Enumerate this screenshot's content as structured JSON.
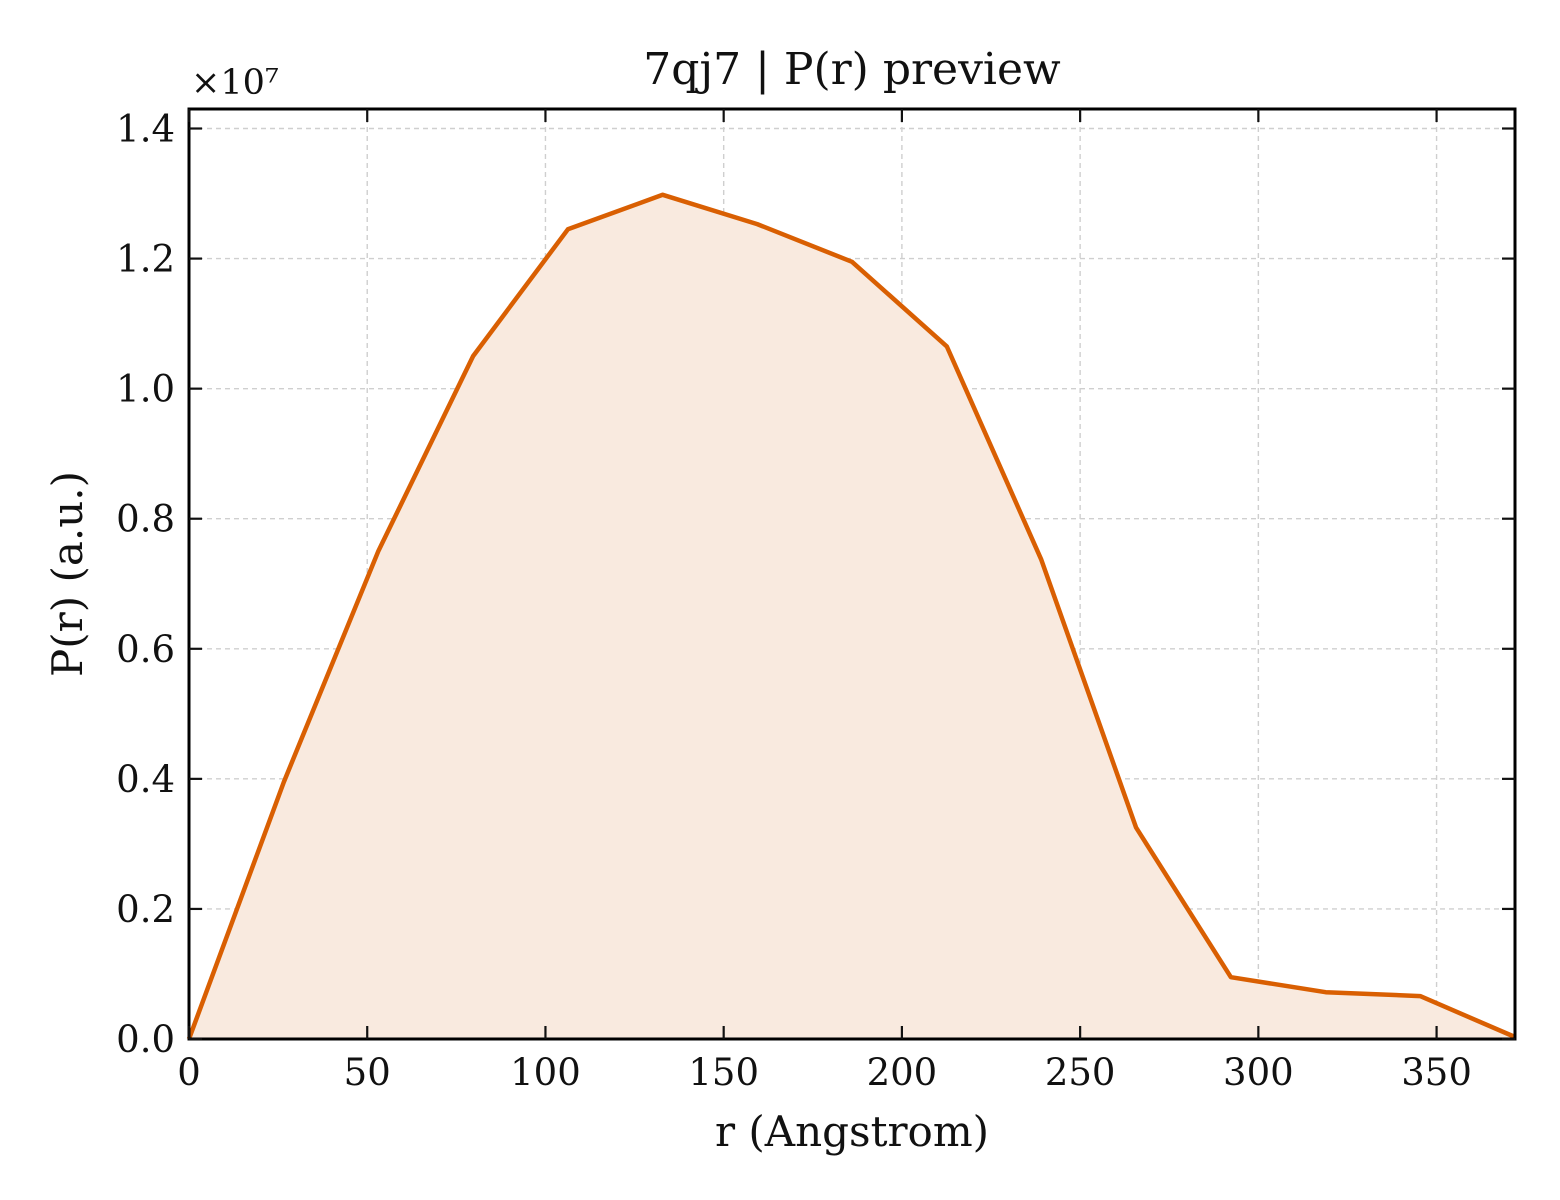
{
  "chart_data": {
    "type": "area",
    "title": "7qj7 | P(r) preview",
    "xlabel": "r (Angstrom)",
    "ylabel": "P(r) (a.u.)",
    "y_offset_label": "×10⁷",
    "y_scale_factor": 10000000,
    "xlim": [
      0,
      372
    ],
    "ylim": [
      0,
      1.43
    ],
    "x_ticks": [
      0,
      50,
      100,
      150,
      200,
      250,
      300,
      350
    ],
    "y_ticks": [
      0.0,
      0.2,
      0.4,
      0.6,
      0.8,
      1.0,
      1.2,
      1.4
    ],
    "y_tick_labels": [
      "0.0",
      "0.2",
      "0.4",
      "0.6",
      "0.8",
      "1.0",
      "1.2",
      "1.4"
    ],
    "grid": true,
    "line_color": "#d95f02",
    "fill_color": "#f9eadf",
    "series": [
      {
        "x": [
          0,
          26.6,
          53.1,
          79.7,
          106.3,
          132.9,
          159.4,
          186.0,
          212.6,
          239.1,
          265.7,
          292.3,
          318.9,
          345.4,
          372.0
        ],
        "y": [
          0.0,
          0.395,
          0.75,
          1.05,
          1.245,
          1.298,
          1.253,
          1.195,
          1.065,
          0.737,
          0.325,
          0.095,
          0.072,
          0.066,
          0.003
        ]
      }
    ]
  }
}
